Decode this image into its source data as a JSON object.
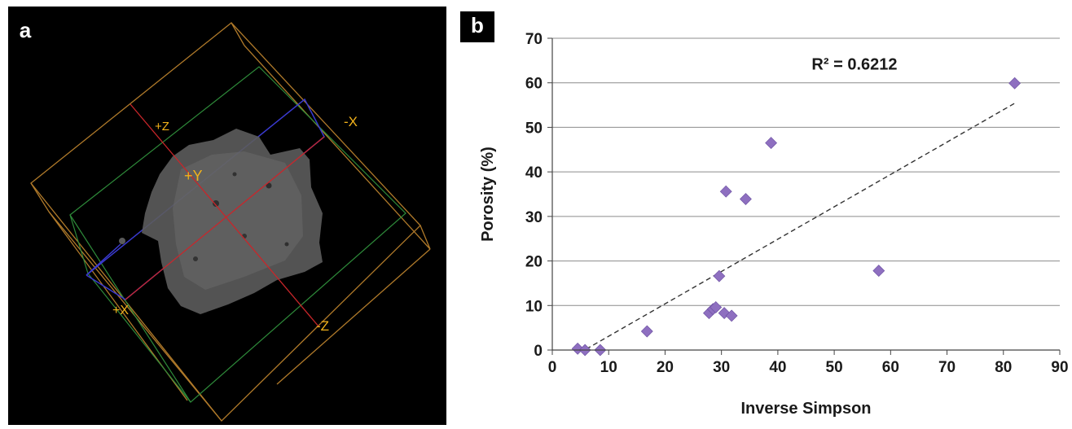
{
  "panels": {
    "a": {
      "letter": "a",
      "axis_labels": {
        "plus_z": "+Z",
        "minus_x": "-X",
        "plus_y": "+Y",
        "plus_x": "+X",
        "minus_z": "-Z"
      },
      "colors": {
        "background": "#000000",
        "axis_label": "#f2b21b",
        "outer_box": "#b07a2a",
        "green_plane": "#2e8b3a",
        "blue_line": "#3a3ad0",
        "red_line": "#c8262a",
        "sample": "#5a5a5a"
      }
    },
    "b": {
      "letter": "b"
    }
  },
  "chart_data": {
    "type": "scatter",
    "xlabel": "Inverse Simpson",
    "ylabel": "Porosity (%)",
    "xlim": [
      0,
      90
    ],
    "ylim": [
      0,
      70
    ],
    "x_ticks": [
      "0",
      "10",
      "20",
      "30",
      "40",
      "50",
      "60",
      "70",
      "80",
      "90"
    ],
    "y_ticks": [
      "0",
      "10",
      "20",
      "30",
      "40",
      "50",
      "60",
      "70"
    ],
    "grid": "horizontal",
    "points": [
      {
        "x": 4.5,
        "y": 0.3
      },
      {
        "x": 5.8,
        "y": 0.0
      },
      {
        "x": 8.5,
        "y": 0.0
      },
      {
        "x": 16.8,
        "y": 4.2
      },
      {
        "x": 27.8,
        "y": 8.3
      },
      {
        "x": 28.5,
        "y": 9.2
      },
      {
        "x": 29.0,
        "y": 9.6
      },
      {
        "x": 29.6,
        "y": 16.6
      },
      {
        "x": 30.5,
        "y": 8.3
      },
      {
        "x": 31.8,
        "y": 7.7
      },
      {
        "x": 30.8,
        "y": 35.6
      },
      {
        "x": 34.3,
        "y": 33.9
      },
      {
        "x": 38.8,
        "y": 46.5
      },
      {
        "x": 57.9,
        "y": 17.8
      },
      {
        "x": 82.0,
        "y": 59.9
      }
    ],
    "trendline": {
      "x": [
        6.0,
        82.0
      ],
      "y": [
        0.2,
        55.4
      ],
      "style": "dashed"
    },
    "annotation": "R² = 0.6212",
    "marker_color": "#8e6fc0"
  }
}
